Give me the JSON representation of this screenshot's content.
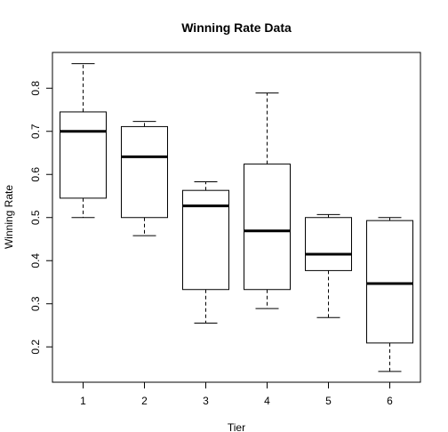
{
  "chart_data": {
    "type": "boxplot",
    "title": "Winning Rate Data",
    "xlabel": "Tier",
    "ylabel": "Winning Rate",
    "categories": [
      "1",
      "2",
      "3",
      "4",
      "5",
      "6"
    ],
    "boxes": [
      {
        "category": "1",
        "whisker_low": 0.5,
        "q1": 0.545,
        "median": 0.7,
        "q3": 0.745,
        "whisker_high": 0.857
      },
      {
        "category": "2",
        "whisker_low": 0.458,
        "q1": 0.5,
        "median": 0.641,
        "q3": 0.711,
        "whisker_high": 0.723
      },
      {
        "category": "3",
        "whisker_low": 0.255,
        "q1": 0.333,
        "median": 0.527,
        "q3": 0.563,
        "whisker_high": 0.583
      },
      {
        "category": "4",
        "whisker_low": 0.289,
        "q1": 0.333,
        "median": 0.469,
        "q3": 0.624,
        "whisker_high": 0.789
      },
      {
        "category": "5",
        "whisker_low": 0.268,
        "q1": 0.377,
        "median": 0.415,
        "q3": 0.5,
        "whisker_high": 0.507
      },
      {
        "category": "6",
        "whisker_low": 0.143,
        "q1": 0.209,
        "median": 0.347,
        "q3": 0.493,
        "whisker_high": 0.5
      }
    ],
    "yticks": [
      "0.2",
      "0.3",
      "0.4",
      "0.5",
      "0.6",
      "0.7",
      "0.8"
    ],
    "ylim": [
      0.118,
      0.883
    ],
    "xlim": [
      0.5,
      6.5
    ],
    "grid": false,
    "legend": "none",
    "colors": {
      "box_fill": "#ffffff",
      "stroke": "#000000"
    }
  }
}
